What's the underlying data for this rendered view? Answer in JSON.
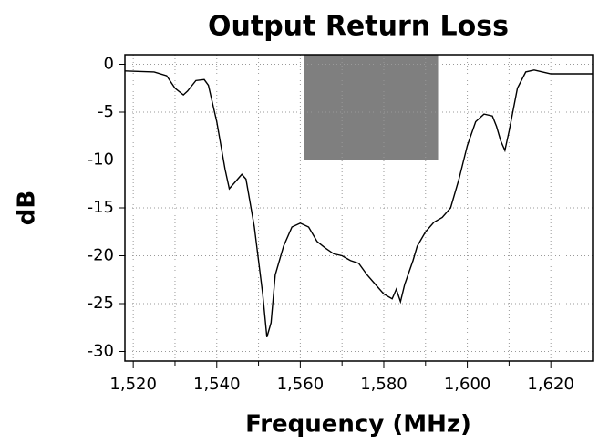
{
  "chart_data": {
    "type": "line",
    "title": "Output Return Loss",
    "xlabel": "Frequency (MHz)",
    "ylabel": "dB",
    "x": [
      1518,
      1525,
      1528,
      1530,
      1532,
      1533,
      1535,
      1537,
      1538,
      1540,
      1542,
      1543,
      1545,
      1546,
      1547,
      1549,
      1551,
      1552,
      1553,
      1554,
      1556,
      1558,
      1560,
      1562,
      1564,
      1566,
      1568,
      1570,
      1572,
      1574,
      1576,
      1578,
      1580,
      1582,
      1583,
      1584,
      1585,
      1587,
      1588,
      1590,
      1592,
      1594,
      1596,
      1598,
      1600,
      1602,
      1604,
      1606,
      1607,
      1608,
      1609,
      1610,
      1612,
      1614,
      1616,
      1618,
      1620,
      1630
    ],
    "series": [
      {
        "color": "#000000",
        "values": [
          -0.7,
          -0.8,
          -1.2,
          -2.5,
          -3.2,
          -2.8,
          -1.7,
          -1.6,
          -2.2,
          -6,
          -11,
          -13,
          -12,
          -11.5,
          -12,
          -17,
          -24,
          -28.5,
          -27,
          -22,
          -19,
          -17,
          -16.6,
          -17,
          -18.5,
          -19.2,
          -19.8,
          -20,
          -20.5,
          -20.8,
          -22,
          -23,
          -24,
          -24.5,
          -23.5,
          -24.8,
          -23,
          -20.5,
          -19,
          -17.5,
          -16.5,
          -16,
          -15,
          -12,
          -8.5,
          -6,
          -5.2,
          -5.4,
          -6.5,
          -8,
          -9,
          -7,
          -2.5,
          -0.8,
          -0.6,
          -0.8,
          -1,
          -1
        ]
      }
    ],
    "mask": {
      "color": "#7f7f7f",
      "x": [
        1561,
        1593
      ],
      "y": [
        -10,
        1
      ]
    },
    "xlim": [
      1518,
      1630
    ],
    "xticks": [
      {
        "value": 1520,
        "label": "1,520"
      },
      {
        "value": 1540,
        "label": "1,540"
      },
      {
        "value": 1560,
        "label": "1,560"
      },
      {
        "value": 1580,
        "label": "1,580"
      },
      {
        "value": 1600,
        "label": "1,600"
      },
      {
        "value": 1620,
        "label": "1,620"
      }
    ],
    "xgrid": [
      1530,
      1550,
      1570,
      1590,
      1610
    ],
    "ylim": [
      -31,
      1
    ],
    "yticks": [
      0,
      -5,
      -10,
      -15,
      -20,
      -25,
      -30
    ],
    "grid": true
  }
}
